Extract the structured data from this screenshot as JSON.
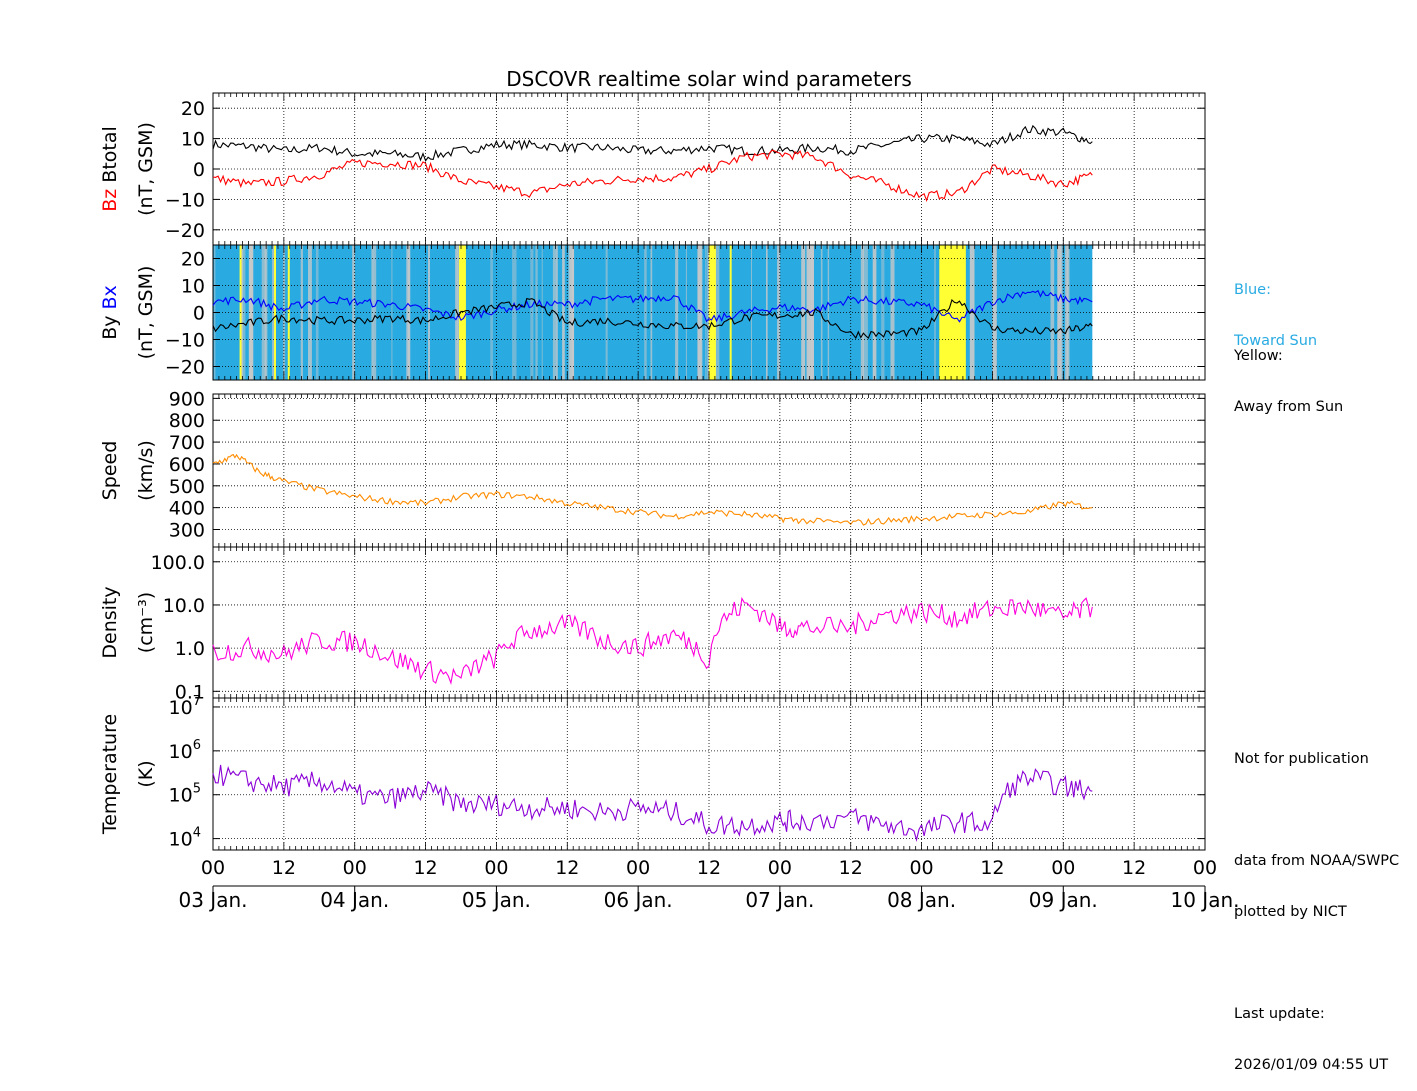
{
  "chart_data": {
    "type": "line",
    "title": "DSCOVR realtime solar wind parameters",
    "colors": {
      "btotal": "#000000",
      "bz": "#ff0000",
      "bx": "#0000ff",
      "by": "#000000",
      "toward": "#29abe2",
      "away": "#ffff33",
      "mixed": "#c8c8c8",
      "speed": "#ff8c00",
      "density": "#ff00dd",
      "temperature": "#8b00d6"
    },
    "x_axis": {
      "start": "2026-01-03T00:00",
      "end": "2026-01-10T00:00",
      "hour_ticks": [
        "00",
        "12",
        "00",
        "12",
        "00",
        "12",
        "00",
        "12",
        "00",
        "12",
        "00",
        "12",
        "00",
        "12",
        "00"
      ],
      "date_ticks": [
        "03 Jan.",
        "04 Jan.",
        "05 Jan.",
        "06 Jan.",
        "07 Jan.",
        "08 Jan.",
        "09 Jan.",
        "10 Jan."
      ],
      "grid": true
    },
    "panels": [
      {
        "id": "btotal_bz",
        "ylabel_parts": [
          {
            "text": "Bz",
            "color": "#ff0000"
          },
          {
            "text": "  Btotal",
            "color": "#000000"
          }
        ],
        "ylabel2": "(nT, GSM)",
        "ylim": [
          -25,
          25
        ],
        "scale": "linear",
        "ticks": [
          20,
          10,
          0,
          -10,
          -20
        ],
        "tick_labels": [
          "20",
          "10",
          "0",
          "−10",
          "−20"
        ],
        "series": [
          {
            "name": "Btotal",
            "color": "#000000",
            "x": [
              "2026-01-03T00:00",
              "2026-01-03T06:00",
              "2026-01-03T12:00",
              "2026-01-03T18:00",
              "2026-01-04T00:00",
              "2026-01-04T06:00",
              "2026-01-04T12:00",
              "2026-01-04T18:00",
              "2026-01-05T00:00",
              "2026-01-05T06:00",
              "2026-01-05T12:00",
              "2026-01-05T18:00",
              "2026-01-06T00:00",
              "2026-01-06T06:00",
              "2026-01-06T12:00",
              "2026-01-06T18:00",
              "2026-01-07T00:00",
              "2026-01-07T06:00",
              "2026-01-07T12:00",
              "2026-01-07T18:00",
              "2026-01-08T00:00",
              "2026-01-08T06:00",
              "2026-01-08T12:00",
              "2026-01-08T18:00",
              "2026-01-09T00:00",
              "2026-01-09T04:55"
            ],
            "y": [
              8,
              7.5,
              6,
              7,
              5,
              5,
              4,
              6,
              8,
              8,
              7,
              7,
              6,
              6,
              7,
              6,
              6,
              7,
              6,
              8,
              10,
              10,
              8,
              13,
              12,
              9
            ]
          },
          {
            "name": "Bz",
            "color": "#ff0000",
            "x": [
              "2026-01-03T00:00",
              "2026-01-03T06:00",
              "2026-01-03T12:00",
              "2026-01-03T18:00",
              "2026-01-04T00:00",
              "2026-01-04T06:00",
              "2026-01-04T12:00",
              "2026-01-04T18:00",
              "2026-01-05T00:00",
              "2026-01-05T06:00",
              "2026-01-05T12:00",
              "2026-01-05T18:00",
              "2026-01-06T00:00",
              "2026-01-06T06:00",
              "2026-01-06T12:00",
              "2026-01-06T18:00",
              "2026-01-07T00:00",
              "2026-01-07T06:00",
              "2026-01-07T12:00",
              "2026-01-07T18:00",
              "2026-01-08T00:00",
              "2026-01-08T06:00",
              "2026-01-08T12:00",
              "2026-01-08T18:00",
              "2026-01-09T00:00",
              "2026-01-09T04:55"
            ],
            "y": [
              -3,
              -5,
              -4,
              -2,
              2,
              2,
              1,
              -4,
              -6,
              -8,
              -5,
              -4,
              -3,
              -3,
              0,
              4,
              5,
              4,
              -2,
              -5,
              -9,
              -8,
              0,
              -2,
              -5,
              -2
            ]
          }
        ]
      },
      {
        "id": "bx_by",
        "ylabel_parts": [
          {
            "text": "By",
            "color": "#000000"
          },
          {
            "text": "  Bx",
            "color": "#0000ff"
          }
        ],
        "ylabel2": "(nT, GSM)",
        "ylim": [
          -25,
          25
        ],
        "scale": "linear",
        "ticks": [
          20,
          10,
          0,
          -10,
          -20
        ],
        "tick_labels": [
          "20",
          "10",
          "0",
          "−10",
          "−20"
        ],
        "sector_bands_away": [
          [
            "2026-01-03T04:30",
            "2026-01-03T04:50"
          ],
          [
            "2026-01-03T10:20",
            "2026-01-03T10:40"
          ],
          [
            "2026-01-03T12:40",
            "2026-01-03T13:00"
          ],
          [
            "2026-01-04T17:40",
            "2026-01-04T18:50"
          ],
          [
            "2026-01-06T12:00",
            "2026-01-06T13:10"
          ],
          [
            "2026-01-06T15:30",
            "2026-01-06T15:50"
          ],
          [
            "2026-01-08T03:00",
            "2026-01-08T07:30"
          ]
        ],
        "series": [
          {
            "name": "Bx",
            "color": "#0000ff",
            "x": [
              "2026-01-03T00:00",
              "2026-01-03T06:00",
              "2026-01-03T12:00",
              "2026-01-03T18:00",
              "2026-01-04T00:00",
              "2026-01-04T06:00",
              "2026-01-04T12:00",
              "2026-01-04T18:00",
              "2026-01-05T00:00",
              "2026-01-05T06:00",
              "2026-01-05T12:00",
              "2026-01-05T18:00",
              "2026-01-06T00:00",
              "2026-01-06T06:00",
              "2026-01-06T12:00",
              "2026-01-06T18:00",
              "2026-01-07T00:00",
              "2026-01-07T06:00",
              "2026-01-07T12:00",
              "2026-01-07T18:00",
              "2026-01-08T00:00",
              "2026-01-08T06:00",
              "2026-01-08T12:00",
              "2026-01-08T18:00",
              "2026-01-09T00:00",
              "2026-01-09T04:55"
            ],
            "y": [
              4,
              5,
              1,
              5,
              4,
              3,
              1,
              -2,
              1,
              3,
              3,
              5,
              5,
              6,
              -3,
              0,
              2,
              1,
              5,
              4,
              3,
              -3,
              4,
              8,
              5,
              4
            ]
          },
          {
            "name": "By",
            "color": "#000000",
            "x": [
              "2026-01-03T00:00",
              "2026-01-03T06:00",
              "2026-01-03T12:00",
              "2026-01-03T18:00",
              "2026-01-04T00:00",
              "2026-01-04T06:00",
              "2026-01-04T12:00",
              "2026-01-04T18:00",
              "2026-01-05T00:00",
              "2026-01-05T06:00",
              "2026-01-05T12:00",
              "2026-01-05T18:00",
              "2026-01-06T00:00",
              "2026-01-06T06:00",
              "2026-01-06T12:00",
              "2026-01-06T18:00",
              "2026-01-07T00:00",
              "2026-01-07T06:00",
              "2026-01-07T12:00",
              "2026-01-07T18:00",
              "2026-01-08T00:00",
              "2026-01-08T06:00",
              "2026-01-08T12:00",
              "2026-01-08T18:00",
              "2026-01-09T00:00",
              "2026-01-09T04:55"
            ],
            "y": [
              -6,
              -4,
              -2,
              -3,
              -3,
              -2,
              -3,
              0,
              2,
              4,
              -4,
              -3,
              -4,
              -5,
              -5,
              -2,
              -1,
              0,
              -8,
              -8,
              -7,
              5,
              -6,
              -7,
              -7,
              -5
            ]
          }
        ]
      },
      {
        "id": "speed",
        "ylabel_parts": [
          {
            "text": "Speed",
            "color": "#000000"
          }
        ],
        "ylabel2": "(km/s)",
        "ylim": [
          220,
          920
        ],
        "scale": "linear",
        "ticks": [
          900,
          800,
          700,
          600,
          500,
          400,
          300
        ],
        "tick_labels": [
          "900",
          "800",
          "700",
          "600",
          "500",
          "400",
          "300"
        ],
        "series": [
          {
            "name": "Speed",
            "color": "#ff8c00",
            "x": [
              "2026-01-03T00:00",
              "2026-01-03T04:00",
              "2026-01-03T08:00",
              "2026-01-03T12:00",
              "2026-01-03T18:00",
              "2026-01-04T00:00",
              "2026-01-04T06:00",
              "2026-01-04T12:00",
              "2026-01-04T18:00",
              "2026-01-05T00:00",
              "2026-01-05T06:00",
              "2026-01-05T12:00",
              "2026-01-05T18:00",
              "2026-01-06T00:00",
              "2026-01-06T06:00",
              "2026-01-06T12:00",
              "2026-01-06T18:00",
              "2026-01-07T00:00",
              "2026-01-07T04:00",
              "2026-01-07T12:00",
              "2026-01-07T18:00",
              "2026-01-08T00:00",
              "2026-01-08T06:00",
              "2026-01-08T12:00",
              "2026-01-08T18:00",
              "2026-01-09T00:00",
              "2026-01-09T04:55"
            ],
            "y": [
              600,
              640,
              560,
              520,
              480,
              450,
              430,
              420,
              450,
              460,
              450,
              420,
              400,
              380,
              360,
              380,
              370,
              350,
              340,
              330,
              340,
              350,
              360,
              370,
              380,
              420,
              400
            ]
          }
        ]
      },
      {
        "id": "density",
        "ylabel_parts": [
          {
            "text": "Density",
            "color": "#000000"
          }
        ],
        "ylabel2": "(cm⁻³)",
        "ylim": [
          0.07,
          220
        ],
        "scale": "log",
        "ticks": [
          100,
          10,
          1,
          0.1
        ],
        "tick_labels": [
          "100.0",
          "10.0",
          "1.0",
          "0.1"
        ],
        "series": [
          {
            "name": "Density",
            "color": "#ff00dd",
            "x": [
              "2026-01-03T00:00",
              "2026-01-03T06:00",
              "2026-01-03T12:00",
              "2026-01-03T18:00",
              "2026-01-04T00:00",
              "2026-01-04T06:00",
              "2026-01-04T12:00",
              "2026-01-04T18:00",
              "2026-01-05T00:00",
              "2026-01-05T06:00",
              "2026-01-05T12:00",
              "2026-01-05T18:00",
              "2026-01-06T00:00",
              "2026-01-06T06:00",
              "2026-01-06T12:00",
              "2026-01-06T18:00",
              "2026-01-07T00:00",
              "2026-01-07T04:00",
              "2026-01-07T12:00",
              "2026-01-07T18:00",
              "2026-01-08T00:00",
              "2026-01-08T06:00",
              "2026-01-08T12:00",
              "2026-01-08T18:00",
              "2026-01-09T00:00",
              "2026-01-09T04:55"
            ],
            "y": [
              0.8,
              1.0,
              0.7,
              1.5,
              1.4,
              0.6,
              0.3,
              0.2,
              0.6,
              2.5,
              3.5,
              1.5,
              1.0,
              2.0,
              0.5,
              10,
              3.0,
              3.0,
              3.0,
              6.0,
              7.0,
              5.0,
              8.0,
              9.0,
              5.0,
              9.0
            ]
          }
        ]
      },
      {
        "id": "temperature",
        "ylabel_parts": [
          {
            "text": "Temperature",
            "color": "#000000"
          }
        ],
        "ylabel2": "(K)",
        "ylim": [
          5500,
          16000000
        ],
        "scale": "log",
        "ticks": [
          10000000,
          1000000,
          100000,
          10000
        ],
        "tick_labels": [
          "7",
          "6",
          "5",
          "4"
        ],
        "series": [
          {
            "name": "Temperature",
            "color": "#8b00d6",
            "x": [
              "2026-01-03T00:00",
              "2026-01-03T06:00",
              "2026-01-03T12:00",
              "2026-01-03T18:00",
              "2026-01-04T00:00",
              "2026-01-04T06:00",
              "2026-01-04T12:00",
              "2026-01-04T18:00",
              "2026-01-05T00:00",
              "2026-01-05T06:00",
              "2026-01-05T12:00",
              "2026-01-05T18:00",
              "2026-01-06T00:00",
              "2026-01-06T06:00",
              "2026-01-06T12:00",
              "2026-01-06T18:00",
              "2026-01-07T00:00",
              "2026-01-07T04:00",
              "2026-01-07T12:00",
              "2026-01-07T18:00",
              "2026-01-08T00:00",
              "2026-01-08T06:00",
              "2026-01-08T12:00",
              "2026-01-08T18:00",
              "2026-01-09T00:00",
              "2026-01-09T04:55"
            ],
            "y": [
              300000,
              200000,
              150000,
              200000,
              100000,
              80000,
              120000,
              60000,
              60000,
              50000,
              50000,
              40000,
              50000,
              40000,
              20000,
              20000,
              25000,
              25000,
              30000,
              20000,
              15000,
              25000,
              20000,
              250000,
              150000,
              120000
            ]
          }
        ]
      }
    ]
  },
  "legend": {
    "toward": [
      "Blue:",
      "Toward Sun"
    ],
    "away": [
      "Yellow:",
      "Away from Sun"
    ]
  },
  "footer": {
    "notice": "Not for publication",
    "source_lines": [
      "data from NOAA/SWPC",
      "plotted by NICT"
    ],
    "update_label": "Last update:",
    "update_value": "2026/01/09 04:55 UT"
  }
}
